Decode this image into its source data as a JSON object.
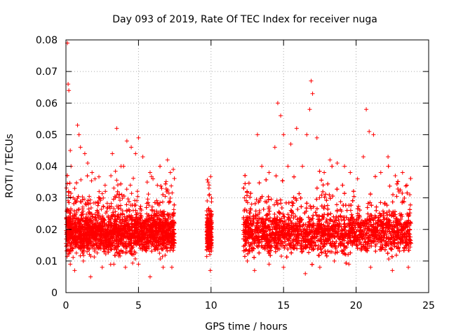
{
  "chart_data": {
    "type": "scatter",
    "title": "Day 093 of 2019, Rate Of TEC Index for receiver nuga",
    "xlabel": "GPS time / hours",
    "ylabel": "ROTI / TECUs",
    "xlim": [
      0,
      25
    ],
    "ylim": [
      0,
      0.08
    ],
    "xticks": [
      0,
      5,
      10,
      15,
      20,
      25
    ],
    "xtick_labels": [
      "0",
      "5",
      "10",
      "15",
      "20",
      "25"
    ],
    "yticks": [
      0,
      0.01,
      0.02,
      0.03,
      0.04,
      0.05,
      0.06,
      0.07,
      0.08
    ],
    "ytick_labels": [
      "0",
      "0.01",
      "0.02",
      "0.03",
      "0.04",
      "0.05",
      "0.06",
      "0.07",
      "0.08"
    ],
    "grid": true,
    "marker": "+",
    "color": "#ff0000",
    "points": [
      [
        0.1,
        0.079
      ],
      [
        0.15,
        0.066
      ],
      [
        0.2,
        0.064
      ],
      [
        0.3,
        0.045
      ],
      [
        0.35,
        0.04
      ],
      [
        0.5,
        0.03
      ],
      [
        0.6,
        0.033
      ],
      [
        0.8,
        0.053
      ],
      [
        0.9,
        0.05
      ],
      [
        1.0,
        0.046
      ],
      [
        1.3,
        0.044
      ],
      [
        1.5,
        0.041
      ],
      [
        1.8,
        0.038
      ],
      [
        2.0,
        0.036
      ],
      [
        2.3,
        0.03
      ],
      [
        2.7,
        0.034
      ],
      [
        3.1,
        0.037
      ],
      [
        3.2,
        0.044
      ],
      [
        3.5,
        0.052
      ],
      [
        3.8,
        0.04
      ],
      [
        4.2,
        0.048
      ],
      [
        4.5,
        0.046
      ],
      [
        4.8,
        0.044
      ],
      [
        5.0,
        0.049
      ],
      [
        5.3,
        0.043
      ],
      [
        5.6,
        0.035
      ],
      [
        5.8,
        0.038
      ],
      [
        6.0,
        0.036
      ],
      [
        6.3,
        0.034
      ],
      [
        6.6,
        0.033
      ],
      [
        7.0,
        0.042
      ],
      [
        7.2,
        0.038
      ],
      [
        7.4,
        0.039
      ],
      [
        0.3,
        0.009
      ],
      [
        0.6,
        0.007
      ],
      [
        1.2,
        0.01
      ],
      [
        1.7,
        0.005
      ],
      [
        2.5,
        0.008
      ],
      [
        3.3,
        0.009
      ],
      [
        4.1,
        0.008
      ],
      [
        5.0,
        0.009
      ],
      [
        5.8,
        0.005
      ],
      [
        6.7,
        0.008
      ],
      [
        7.3,
        0.008
      ],
      [
        9.8,
        0.035
      ],
      [
        9.9,
        0.031
      ],
      [
        9.85,
        0.021
      ],
      [
        9.9,
        0.013
      ],
      [
        9.95,
        0.007
      ],
      [
        12.3,
        0.03
      ],
      [
        12.8,
        0.028
      ],
      [
        13.2,
        0.05
      ],
      [
        13.5,
        0.04
      ],
      [
        14.0,
        0.038
      ],
      [
        14.4,
        0.046
      ],
      [
        14.6,
        0.06
      ],
      [
        14.8,
        0.056
      ],
      [
        15.0,
        0.05
      ],
      [
        15.3,
        0.04
      ],
      [
        15.5,
        0.047
      ],
      [
        15.9,
        0.052
      ],
      [
        16.3,
        0.04
      ],
      [
        16.6,
        0.05
      ],
      [
        16.8,
        0.058
      ],
      [
        16.9,
        0.067
      ],
      [
        17.0,
        0.063
      ],
      [
        17.3,
        0.049
      ],
      [
        17.8,
        0.038
      ],
      [
        18.2,
        0.042
      ],
      [
        18.7,
        0.041
      ],
      [
        19.2,
        0.04
      ],
      [
        19.6,
        0.038
      ],
      [
        20.1,
        0.036
      ],
      [
        20.5,
        0.043
      ],
      [
        20.7,
        0.058
      ],
      [
        20.9,
        0.051
      ],
      [
        21.2,
        0.05
      ],
      [
        21.7,
        0.038
      ],
      [
        22.2,
        0.043
      ],
      [
        22.7,
        0.037
      ],
      [
        23.2,
        0.038
      ],
      [
        23.5,
        0.034
      ],
      [
        23.7,
        0.031
      ],
      [
        12.5,
        0.01
      ],
      [
        13.0,
        0.007
      ],
      [
        14.0,
        0.009
      ],
      [
        15.0,
        0.008
      ],
      [
        16.5,
        0.006
      ],
      [
        17.5,
        0.008
      ],
      [
        18.5,
        0.01
      ],
      [
        19.5,
        0.009
      ],
      [
        21.0,
        0.008
      ],
      [
        22.5,
        0.007
      ],
      [
        23.6,
        0.008
      ]
    ]
  }
}
